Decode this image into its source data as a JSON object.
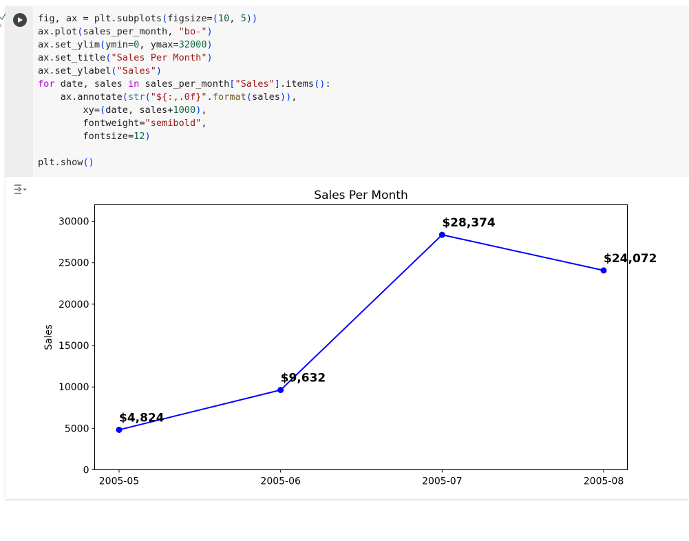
{
  "code": {
    "lines": [
      [
        [
          "t",
          "fig, ax = plt.subplots"
        ],
        [
          "b",
          "("
        ],
        [
          "t",
          "figsize="
        ],
        [
          "b",
          "("
        ],
        [
          "n",
          "10"
        ],
        [
          "t",
          ", "
        ],
        [
          "n",
          "5"
        ],
        [
          "b",
          "))"
        ]
      ],
      [
        [
          "t",
          "ax.plot"
        ],
        [
          "b",
          "("
        ],
        [
          "t",
          "sales_per_month, "
        ],
        [
          "s",
          "\"bo-\""
        ],
        [
          "b",
          ")"
        ]
      ],
      [
        [
          "t",
          "ax.set_ylim"
        ],
        [
          "b",
          "("
        ],
        [
          "t",
          "ymin="
        ],
        [
          "n",
          "0"
        ],
        [
          "t",
          ", ymax="
        ],
        [
          "n",
          "32000"
        ],
        [
          "b",
          ")"
        ]
      ],
      [
        [
          "t",
          "ax.set_title"
        ],
        [
          "b",
          "("
        ],
        [
          "s",
          "\"Sales Per Month\""
        ],
        [
          "b",
          ")"
        ]
      ],
      [
        [
          "t",
          "ax.set_ylabel"
        ],
        [
          "b",
          "("
        ],
        [
          "s",
          "\"Sales\""
        ],
        [
          "b",
          ")"
        ]
      ],
      [
        [
          "k",
          "for"
        ],
        [
          "t",
          " date, sales "
        ],
        [
          "k",
          "in"
        ],
        [
          "t",
          " sales_per_month"
        ],
        [
          "b",
          "["
        ],
        [
          "s",
          "\"Sales\""
        ],
        [
          "b",
          "]"
        ],
        [
          "t",
          ".items"
        ],
        [
          "b",
          "()"
        ],
        [
          "t",
          ":"
        ]
      ],
      [
        [
          "t",
          "    ax.annotate"
        ],
        [
          "b",
          "("
        ],
        [
          "bi",
          "str"
        ],
        [
          "b",
          "("
        ],
        [
          "s",
          "\"${:,.0f}\""
        ],
        [
          "t",
          "."
        ],
        [
          "f",
          "format"
        ],
        [
          "b",
          "("
        ],
        [
          "t",
          "sales"
        ],
        [
          "b",
          "))"
        ],
        [
          "t",
          ","
        ]
      ],
      [
        [
          "t",
          "        xy="
        ],
        [
          "b",
          "("
        ],
        [
          "t",
          "date, sales+"
        ],
        [
          "n",
          "1000"
        ],
        [
          "b",
          ")"
        ],
        [
          "t",
          ","
        ]
      ],
      [
        [
          "t",
          "        fontweight="
        ],
        [
          "s",
          "\"semibold\""
        ],
        [
          "t",
          ","
        ]
      ],
      [
        [
          "t",
          "        fontsize="
        ],
        [
          "n",
          "12"
        ],
        [
          "b",
          ")"
        ]
      ],
      [
        [
          "t",
          ""
        ]
      ],
      [
        [
          "t",
          "plt.show"
        ],
        [
          "b",
          "()"
        ]
      ]
    ]
  },
  "icons": {
    "run": "play-circle-icon",
    "output_toggle": "output-settings-icon",
    "exec_status": "check-icon"
  },
  "colors": {
    "series": "#0000ff",
    "run_button": "#424242"
  },
  "chart_data": {
    "type": "line",
    "title": "Sales Per Month",
    "xlabel": "",
    "ylabel": "Sales",
    "categories": [
      "2005-05",
      "2005-06",
      "2005-07",
      "2005-08"
    ],
    "series": [
      {
        "values": [
          4824,
          9632,
          28374,
          24072
        ]
      }
    ],
    "annotations": [
      "$4,824",
      "$9,632",
      "$28,374",
      "$24,072"
    ],
    "annotation_offset": 1000,
    "ylim": [
      0,
      32000
    ],
    "yticks": [
      0,
      5000,
      10000,
      15000,
      20000,
      25000,
      30000
    ],
    "marker": "circle",
    "grid": false,
    "legend": false
  }
}
